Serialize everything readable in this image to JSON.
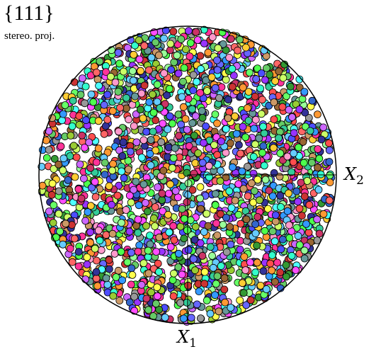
{
  "chart_data": {
    "type": "scatter",
    "title": "{111}",
    "subtitle": "stereo. proj.",
    "axes": {
      "x1_label": "X",
      "x1_sub": "1",
      "x2_label": "X",
      "x2_sub": "2"
    },
    "projection": "stereographic",
    "domain": "unit circle",
    "grid": false,
    "legend": "none",
    "point_count": 2600,
    "point_fill": "random multicolor",
    "point_edge_color": "#000000",
    "circle_color": "#000000"
  }
}
